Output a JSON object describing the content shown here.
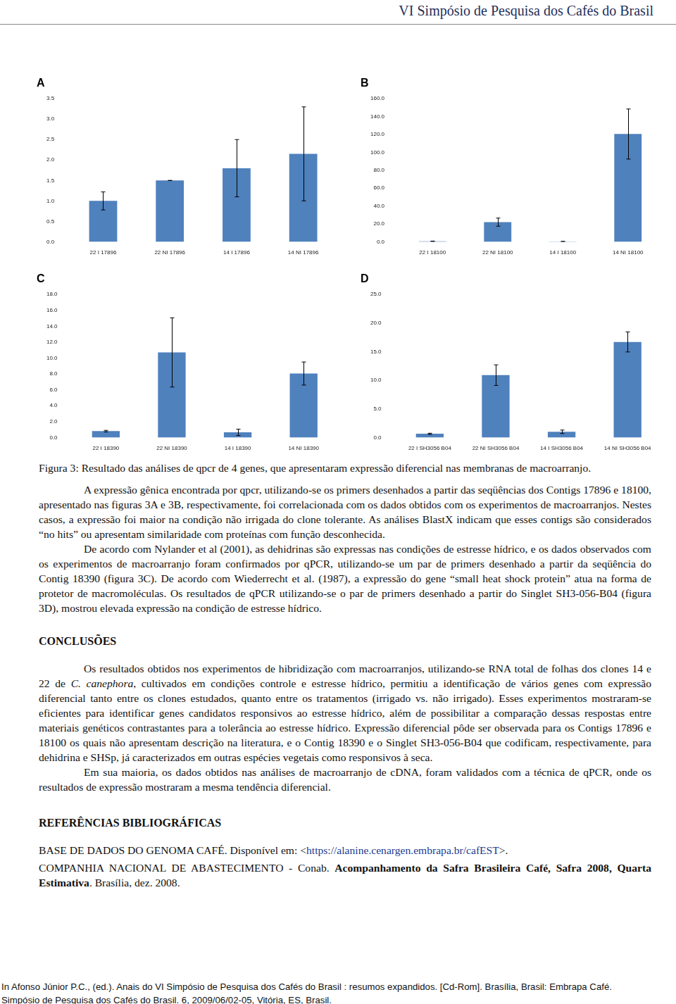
{
  "header": "VI Simpósio de Pesquisa dos Cafés do Brasil",
  "chart_data": [
    {
      "type": "bar",
      "title": "A",
      "categories": [
        "22 I 17896",
        "22 NI 17896",
        "14 I 17896",
        "14 NI 17896"
      ],
      "values": [
        1.0,
        1.5,
        1.8,
        2.15
      ],
      "errors": [
        0.22,
        0,
        0.7,
        1.15
      ],
      "color": "#4f81bd",
      "ylim": [
        0,
        3.5
      ],
      "yticks": [
        {
          "value": 0,
          "label": "0.0"
        },
        {
          "value": 0.5,
          "label": "0.5"
        },
        {
          "value": 1,
          "label": "1.0"
        },
        {
          "value": 1.5,
          "label": "1.5"
        },
        {
          "value": 2,
          "label": "2.0"
        },
        {
          "value": 2.5,
          "label": "2.5"
        },
        {
          "value": 3,
          "label": "3.0"
        },
        {
          "value": 3.5,
          "label": "3.5"
        }
      ],
      "grid": false
    },
    {
      "type": "bar",
      "title": "B",
      "categories": [
        "22 I 18100",
        "22 NI 18100",
        "14 I 18100",
        "14 NI 18100"
      ],
      "values": [
        0.5,
        22,
        0.3,
        120.5
      ],
      "errors": [
        0.3,
        4.5,
        0.2,
        28
      ],
      "color": "#4f81bd",
      "ylim": [
        0,
        160
      ],
      "yticks": [
        {
          "value": 0,
          "label": "0.0"
        },
        {
          "value": 20,
          "label": "20.0"
        },
        {
          "value": 40,
          "label": "40.0"
        },
        {
          "value": 60,
          "label": "60.0"
        },
        {
          "value": 80,
          "label": "80.0"
        },
        {
          "value": 100,
          "label": "100.0"
        },
        {
          "value": 120,
          "label": "120.0"
        },
        {
          "value": 140,
          "label": "140.0"
        },
        {
          "value": 160,
          "label": "160.0"
        }
      ],
      "grid": false
    },
    {
      "type": "bar",
      "title": "C",
      "categories": [
        "22 I 18390",
        "22 NI 18390",
        "14 I 18390",
        "14 NI 18390"
      ],
      "values": [
        0.8,
        10.7,
        0.65,
        8.05
      ],
      "errors": [
        0.1,
        4.35,
        0.4,
        1.45
      ],
      "color": "#4f81bd",
      "ylim": [
        0,
        18
      ],
      "yticks": [
        {
          "value": 0,
          "label": "0.0"
        },
        {
          "value": 2,
          "label": "2.0"
        },
        {
          "value": 4,
          "label": "4.0"
        },
        {
          "value": 6,
          "label": "6.0"
        },
        {
          "value": 8,
          "label": "8.0"
        },
        {
          "value": 10,
          "label": "10.0"
        },
        {
          "value": 12,
          "label": "12.0"
        },
        {
          "value": 14,
          "label": "14.0"
        },
        {
          "value": 16,
          "label": "16.0"
        },
        {
          "value": 18,
          "label": "18.0"
        }
      ],
      "grid": false
    },
    {
      "type": "bar",
      "title": "D",
      "categories": [
        "22 I SH3056 B04",
        "22 NI SH3056 B04",
        "14 I SH3056 B04",
        "14 NI SH3056 B04"
      ],
      "values": [
        0.65,
        10.9,
        1.0,
        16.7
      ],
      "errors": [
        0.1,
        1.8,
        0.3,
        1.75
      ],
      "color": "#4f81bd",
      "ylim": [
        0,
        25
      ],
      "yticks": [
        {
          "value": 0,
          "label": "0.0"
        },
        {
          "value": 5,
          "label": "5.0"
        },
        {
          "value": 10,
          "label": "10.0"
        },
        {
          "value": 15,
          "label": "15.0"
        },
        {
          "value": 20,
          "label": "20.0"
        },
        {
          "value": 25,
          "label": "25.0"
        }
      ],
      "grid": false
    }
  ],
  "caption": "Figura 3: Resultado das análises de qpcr de 4 genes, que apresentaram expressão diferencial nas membranas de macroarranjo.",
  "body": [
    [
      "A expressão gênica encontrada por qpcr, utilizando-se os primers desenhados a partir das seqüências dos Contigs 17896 e 18100, apresentado nas figuras 3A e 3B, respectivamente, foi correlacionada com os dados obtidos com os experimentos de macroarranjos. Nestes casos, a expressão foi maior na condição não irrigada do clone tolerante. As análises BlastX indicam que esses contigs são considerados “no hits” ou apresentam similaridade com proteínas com função desconhecida."
    ],
    [
      "De acordo com Nylander et al (2001), as dehidrinas são expressas nas condições de estresse hídrico, e os dados observados com os experimentos de macroarranjo foram confirmados por qPCR, utilizando-se um par de primers desenhado a partir da seqüência do Contig 18390 (figura 3C). De acordo com Wiederrecht et al. (1987), a expressão do gene “small heat shock protein” atua na forma de protetor de macromoléculas. Os resultados de qPCR utilizando-se o par de primers desenhado a partir do Singlet SH3-056-B04 (figura 3D), mostrou elevada expressão na condição de estresse hídrico."
    ]
  ],
  "conclusions": {
    "heading": "CONCLUSÕES",
    "paragraphs": [
      [
        "Os resultados obtidos nos experimentos de hibridização com macroarranjos, utilizando-se RNA total de folhas dos clones 14 e 22 de ",
        {
          "text": "C. canephora",
          "italic": true
        },
        ", cultivados em condições controle e estresse hídrico, permitiu a identificação de vários genes com expressão diferencial tanto entre os clones estudados, quanto entre os tratamentos (irrigado vs. não irrigado). Esses experimentos mostraram-se eficientes para identificar genes candidatos responsivos ao estresse hídrico, além de possibilitar a comparação dessas respostas entre materiais genéticos contrastantes para a tolerância ao estresse hídrico. Expressão diferencial pôde ser observada para os Contigs 17896 e 18100 os quais não apresentam descrição na literatura, e o Contig 18390 e o Singlet SH3-056-B04 que codificam, respectivamente, para dehidrina e SHSp, já caracterizados em outras espécies vegetais como responsivos à seca."
      ],
      [
        "Em sua maioria, os dados obtidos nas análises de macroarranjo de cDNA, foram validados com a técnica de qPCR, onde os resultados de expressão mostraram a mesma tendência diferencial."
      ]
    ]
  },
  "references": {
    "heading": "REFERÊNCIAS BIBLIOGRÁFICAS",
    "items": [
      [
        "BASE DE DADOS DO GENOMA CAFÉ. Disponível em: <",
        {
          "text": "https://alanine.cenargen.embrapa.br/cafEST",
          "link": true
        },
        ">."
      ],
      [
        "COMPANHIA NACIONAL DE ABASTECIMENTO - Conab. ",
        {
          "text": "Acompanhamento da Safra Brasileira Café, Safra 2008, Quarta Estimativa",
          "bold": true
        },
        ". Brasília, dez. 2008."
      ]
    ]
  },
  "footer": [
    "In Afonso Júnior P.C., (ed.). Anais do VI Simpósio de Pesquisa dos Cafés do Brasil : resumos expandidos. [Cd-Rom]. Brasília, Brasil: Embrapa Café.",
    "Simpósio de Pesquisa dos Cafés do Brasil. 6, 2009/06/02-05, Vitória, ES, Brasil."
  ]
}
